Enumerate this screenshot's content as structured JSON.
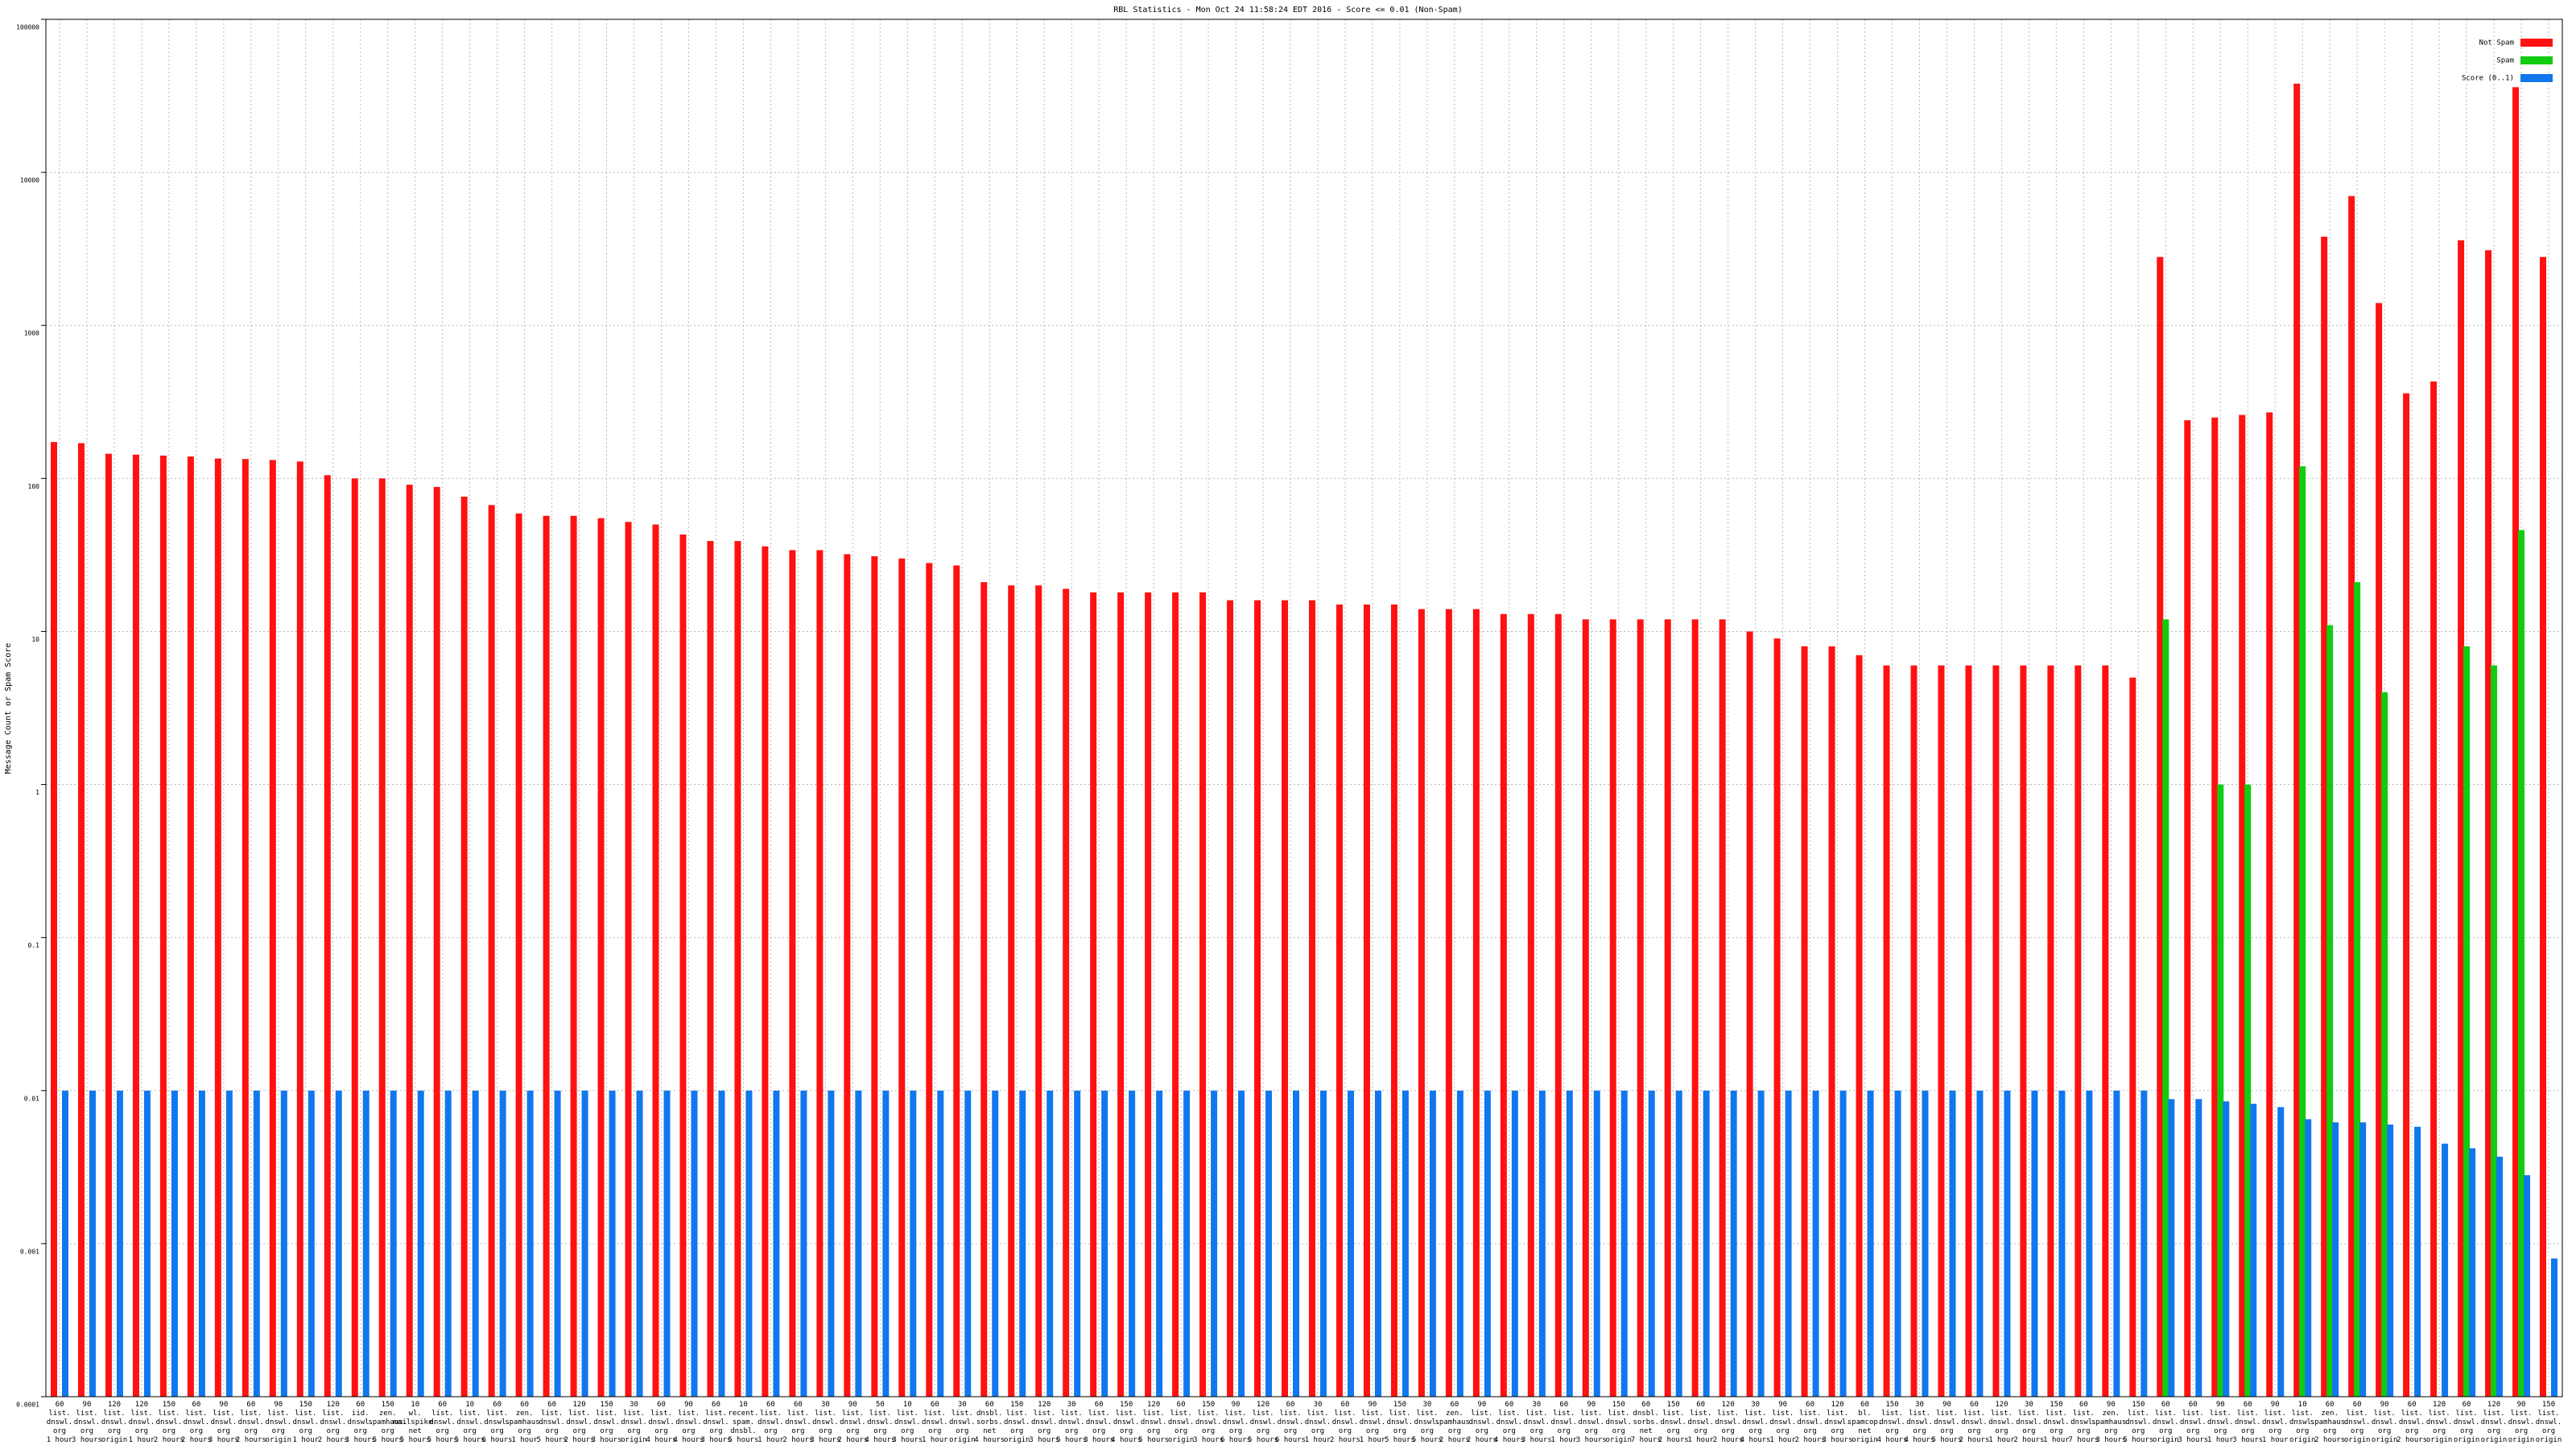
{
  "chart_data": {
    "type": "bar",
    "title": "RBL Statistics - Mon Oct 24 11:58:24 EDT 2016 - Score <= 0.01 (Non-Spam)",
    "y_label": "Message Count or Spam Score",
    "log_y": true,
    "grid": true,
    "legend": "upper right",
    "ylim": [
      0.0001,
      100000
    ],
    "yticks": [
      0.0001,
      0.001,
      0.01,
      0.1,
      1,
      10,
      100,
      1000,
      10000,
      100000
    ],
    "categories": [
      [
        "60",
        "list.",
        "dnswl.",
        "org",
        "1 hour"
      ],
      [
        "90",
        "list.",
        "dnswl.",
        "org",
        "3 hours"
      ],
      [
        "120",
        "list.",
        "dnswl.",
        "org",
        "origin"
      ],
      [
        "120",
        "list.",
        "dnswl.",
        "org",
        "1 hour"
      ],
      [
        "150",
        "list.",
        "dnswl.",
        "org",
        "2 hours"
      ],
      [
        "60",
        "list.",
        "dnswl.",
        "org",
        "2 hours"
      ],
      [
        "90",
        "list.",
        "dnswl.",
        "org",
        "3 hours"
      ],
      [
        "60",
        "list.",
        "dnswl.",
        "org",
        "2 hours"
      ],
      [
        "90",
        "list.",
        "dnswl.",
        "org",
        "origin"
      ],
      [
        "150",
        "list.",
        "dnswl.",
        "org",
        "1 hour"
      ],
      [
        "120",
        "list.",
        "dnswl.",
        "org",
        "2 hours"
      ],
      [
        "60",
        "iid.",
        "dnswl.",
        "org",
        "3 hours"
      ],
      [
        "150",
        "zen.",
        "spamhaus.",
        "org",
        "5 hours"
      ],
      [
        "10",
        "wl.",
        "mailspike.",
        "net",
        "5 hours"
      ],
      [
        "60",
        "list.",
        "dnswl.",
        "org",
        "5 hours"
      ],
      [
        "10",
        "list.",
        "dnswl.",
        "org",
        "5 hours"
      ],
      [
        "60",
        "list.",
        "dnswl.",
        "org",
        "6 hours"
      ],
      [
        "60",
        "zen.",
        "spamhaus.",
        "org",
        "1 hour"
      ],
      [
        "60",
        "list.",
        "dnswl.",
        "org",
        "5 hours"
      ],
      [
        "120",
        "list.",
        "dnswl.",
        "org",
        "2 hours"
      ],
      [
        "150",
        "list.",
        "dnswl.",
        "org",
        "3 hours"
      ],
      [
        "30",
        "list.",
        "dnswl.",
        "org",
        "origin"
      ],
      [
        "60",
        "list.",
        "dnswl.",
        "org",
        "4 hours"
      ],
      [
        "90",
        "list.",
        "dnswl.",
        "org",
        "4 hours"
      ],
      [
        "60",
        "list.",
        "dnswl.",
        "org",
        "3 hours"
      ],
      [
        "10",
        "recent.",
        "spam.",
        "dnsbl.",
        "5 hours"
      ],
      [
        "60",
        "list.",
        "dnswl.",
        "org",
        "1 hour"
      ],
      [
        "60",
        "list.",
        "dnswl.",
        "org",
        "2 hours"
      ],
      [
        "30",
        "list.",
        "dnswl.",
        "org",
        "3 hours"
      ],
      [
        "90",
        "list.",
        "dnswl.",
        "org",
        "2 hours"
      ],
      [
        "50",
        "list.",
        "dnswl.",
        "org",
        "4 hours"
      ],
      [
        "10",
        "list.",
        "dnswl.",
        "org",
        "3 hours"
      ],
      [
        "60",
        "list.",
        "dnswl.",
        "org",
        "1 hour"
      ],
      [
        "30",
        "list.",
        "dnswl.",
        "org",
        "origin"
      ],
      [
        "60",
        "dnsbl.",
        "sorbs.",
        "net",
        "4 hours"
      ],
      [
        "150",
        "list.",
        "dnswl.",
        "org",
        "origin"
      ],
      [
        "120",
        "list.",
        "dnswl.",
        "org",
        "3 hours"
      ],
      [
        "30",
        "list.",
        "dnswl.",
        "org",
        "5 hours"
      ],
      [
        "60",
        "list.",
        "dnswl.",
        "org",
        "3 hours"
      ],
      [
        "150",
        "list.",
        "dnswl.",
        "org",
        "4 hours"
      ],
      [
        "120",
        "list.",
        "dnswl.",
        "org",
        "5 hours"
      ],
      [
        "60",
        "list.",
        "dnswl.",
        "org",
        "origin"
      ],
      [
        "150",
        "list.",
        "dnswl.",
        "org",
        "3 hours"
      ],
      [
        "90",
        "list.",
        "dnswl.",
        "org",
        "6 hours"
      ],
      [
        "120",
        "list.",
        "dnswl.",
        "org",
        "5 hours"
      ],
      [
        "60",
        "list.",
        "dnswl.",
        "org",
        "6 hours"
      ],
      [
        "30",
        "list.",
        "dnswl.",
        "org",
        "1 hour"
      ],
      [
        "60",
        "list.",
        "dnswl.",
        "org",
        "2 hours"
      ],
      [
        "90",
        "list.",
        "dnswl.",
        "org",
        "1 hour"
      ],
      [
        "150",
        "list.",
        "dnswl.",
        "org",
        "5 hours"
      ],
      [
        "30",
        "list.",
        "dnswl.",
        "org",
        "5 hours"
      ],
      [
        "60",
        "zen.",
        "spamhaus.",
        "org",
        "2 hours"
      ],
      [
        "90",
        "list.",
        "dnswl.",
        "org",
        "2 hours"
      ],
      [
        "60",
        "list.",
        "dnswl.",
        "org",
        "4 hours"
      ],
      [
        "30",
        "list.",
        "dnswl.",
        "org",
        "3 hours"
      ],
      [
        "60",
        "list.",
        "dnswl.",
        "org",
        "1 hour"
      ],
      [
        "90",
        "list.",
        "dnswl.",
        "org",
        "3 hours"
      ],
      [
        "150",
        "list.",
        "dnswl.",
        "org",
        "origin"
      ],
      [
        "60",
        "dnsbl.",
        "sorbs.",
        "net",
        "7 hours"
      ],
      [
        "150",
        "list.",
        "dnswl.",
        "org",
        "2 hours"
      ],
      [
        "60",
        "list.",
        "dnswl.",
        "org",
        "1 hour"
      ],
      [
        "120",
        "list.",
        "dnswl.",
        "org",
        "2 hours"
      ],
      [
        "30",
        "list.",
        "dnswl.",
        "org",
        "4 hours"
      ],
      [
        "90",
        "list.",
        "dnswl.",
        "org",
        "1 hour"
      ],
      [
        "60",
        "list.",
        "dnswl.",
        "org",
        "2 hours"
      ],
      [
        "120",
        "list.",
        "dnswl.",
        "org",
        "3 hours"
      ],
      [
        "60",
        "bl.",
        "spamcop.",
        "net",
        "origin"
      ],
      [
        "150",
        "list.",
        "dnswl.",
        "org",
        "4 hours"
      ],
      [
        "30",
        "list.",
        "dnswl.",
        "org",
        "4 hours"
      ],
      [
        "90",
        "list.",
        "dnswl.",
        "org",
        "5 hours"
      ],
      [
        "60",
        "list.",
        "dnswl.",
        "org",
        "2 hours"
      ],
      [
        "120",
        "list.",
        "dnswl.",
        "org",
        "1 hour"
      ],
      [
        "30",
        "list.",
        "dnswl.",
        "org",
        "2 hours"
      ],
      [
        "150",
        "list.",
        "dnswl.",
        "org",
        "1 hour"
      ],
      [
        "60",
        "list.",
        "dnswl.",
        "org",
        "7 hours"
      ],
      [
        "90",
        "zen.",
        "spamhaus.",
        "org",
        "3 hours"
      ],
      [
        "150",
        "list.",
        "dnswl.",
        "org",
        "5 hours"
      ],
      [
        "60",
        "list.",
        "dnswl.",
        "org",
        "origin"
      ],
      [
        "60",
        "list.",
        "dnswl.",
        "org",
        "3 hours"
      ],
      [
        "90",
        "list.",
        "dnswl.",
        "org",
        "1 hour"
      ],
      [
        "60",
        "list.",
        "dnswl.",
        "org",
        "3 hours"
      ],
      [
        "90",
        "list.",
        "dnswl.",
        "org",
        "1 hour"
      ],
      [
        "10",
        "list.",
        "dnswl.",
        "org",
        "origin"
      ],
      [
        "60",
        "zen.",
        "spamhaus.",
        "org",
        "2 hours"
      ],
      [
        "60",
        "list.",
        "dnswl.",
        "org",
        "origin"
      ],
      [
        "90",
        "list.",
        "dnswl.",
        "org",
        "origin"
      ],
      [
        "60",
        "list.",
        "dnswl.",
        "org",
        "2 hours"
      ],
      [
        "120",
        "list.",
        "dnswl.",
        "org",
        "origin"
      ],
      [
        "60",
        "list.",
        "dnswl.",
        "org",
        "origin"
      ],
      [
        "120",
        "list.",
        "dnswl.",
        "org",
        "origin"
      ],
      [
        "90",
        "list.",
        "dnswl.",
        "org",
        "origin"
      ],
      [
        "150",
        "list.",
        "dnswl.",
        "org",
        "origin"
      ]
    ],
    "series": [
      {
        "name": "Not Spam",
        "color": "#ff1111",
        "values": [
          173,
          170,
          145,
          143,
          141,
          139,
          135,
          134,
          132,
          129,
          105,
          100,
          100,
          91,
          88,
          76,
          67,
          59,
          57,
          57,
          55,
          52,
          50,
          43,
          39,
          39,
          36,
          34,
          34,
          32,
          31,
          30,
          28,
          27,
          21,
          20,
          20,
          19,
          18,
          18,
          18,
          18,
          18,
          16,
          16,
          16,
          16,
          15,
          15,
          15,
          14,
          14,
          14,
          13,
          13,
          13,
          12,
          12,
          12,
          12,
          12,
          12,
          10,
          9,
          8,
          8,
          7,
          6,
          6,
          6,
          6,
          6,
          6,
          6,
          6,
          6,
          5,
          2800,
          240,
          250,
          260,
          270,
          38000,
          3800,
          7000,
          1400,
          360,
          430,
          3600,
          3100,
          36000,
          2800
        ]
      },
      {
        "name": "Spam",
        "color": "#11cc11",
        "values": [
          null,
          null,
          null,
          null,
          null,
          null,
          null,
          null,
          null,
          null,
          null,
          null,
          null,
          null,
          null,
          null,
          null,
          null,
          null,
          null,
          null,
          null,
          null,
          null,
          null,
          null,
          null,
          null,
          null,
          null,
          null,
          null,
          null,
          null,
          null,
          null,
          null,
          null,
          null,
          null,
          null,
          null,
          null,
          null,
          null,
          null,
          null,
          null,
          null,
          null,
          null,
          null,
          null,
          null,
          null,
          null,
          null,
          null,
          null,
          null,
          null,
          null,
          null,
          null,
          null,
          null,
          null,
          null,
          null,
          null,
          null,
          null,
          null,
          null,
          null,
          null,
          null,
          12,
          null,
          1,
          1,
          null,
          120,
          11,
          21,
          4,
          null,
          null,
          8,
          6,
          46,
          null
        ]
      },
      {
        "name": "Score (0..1)",
        "color": "#1177ee",
        "values": [
          0.01,
          0.01,
          0.01,
          0.01,
          0.01,
          0.01,
          0.01,
          0.01,
          0.01,
          0.01,
          0.01,
          0.01,
          0.01,
          0.01,
          0.01,
          0.01,
          0.01,
          0.01,
          0.01,
          0.01,
          0.01,
          0.01,
          0.01,
          0.01,
          0.01,
          0.01,
          0.01,
          0.01,
          0.01,
          0.01,
          0.01,
          0.01,
          0.01,
          0.01,
          0.01,
          0.01,
          0.01,
          0.01,
          0.01,
          0.01,
          0.01,
          0.01,
          0.01,
          0.01,
          0.01,
          0.01,
          0.01,
          0.01,
          0.01,
          0.01,
          0.01,
          0.01,
          0.01,
          0.01,
          0.01,
          0.01,
          0.01,
          0.01,
          0.01,
          0.01,
          0.01,
          0.01,
          0.01,
          0.01,
          0.01,
          0.01,
          0.01,
          0.01,
          0.01,
          0.01,
          0.01,
          0.01,
          0.01,
          0.01,
          0.01,
          0.01,
          0.01,
          0.0088,
          0.0088,
          0.0085,
          0.0082,
          0.0078,
          0.0065,
          0.0062,
          0.0062,
          0.006,
          0.0058,
          0.0045,
          0.0042,
          0.0037,
          0.0028,
          0.0008
        ]
      }
    ]
  }
}
